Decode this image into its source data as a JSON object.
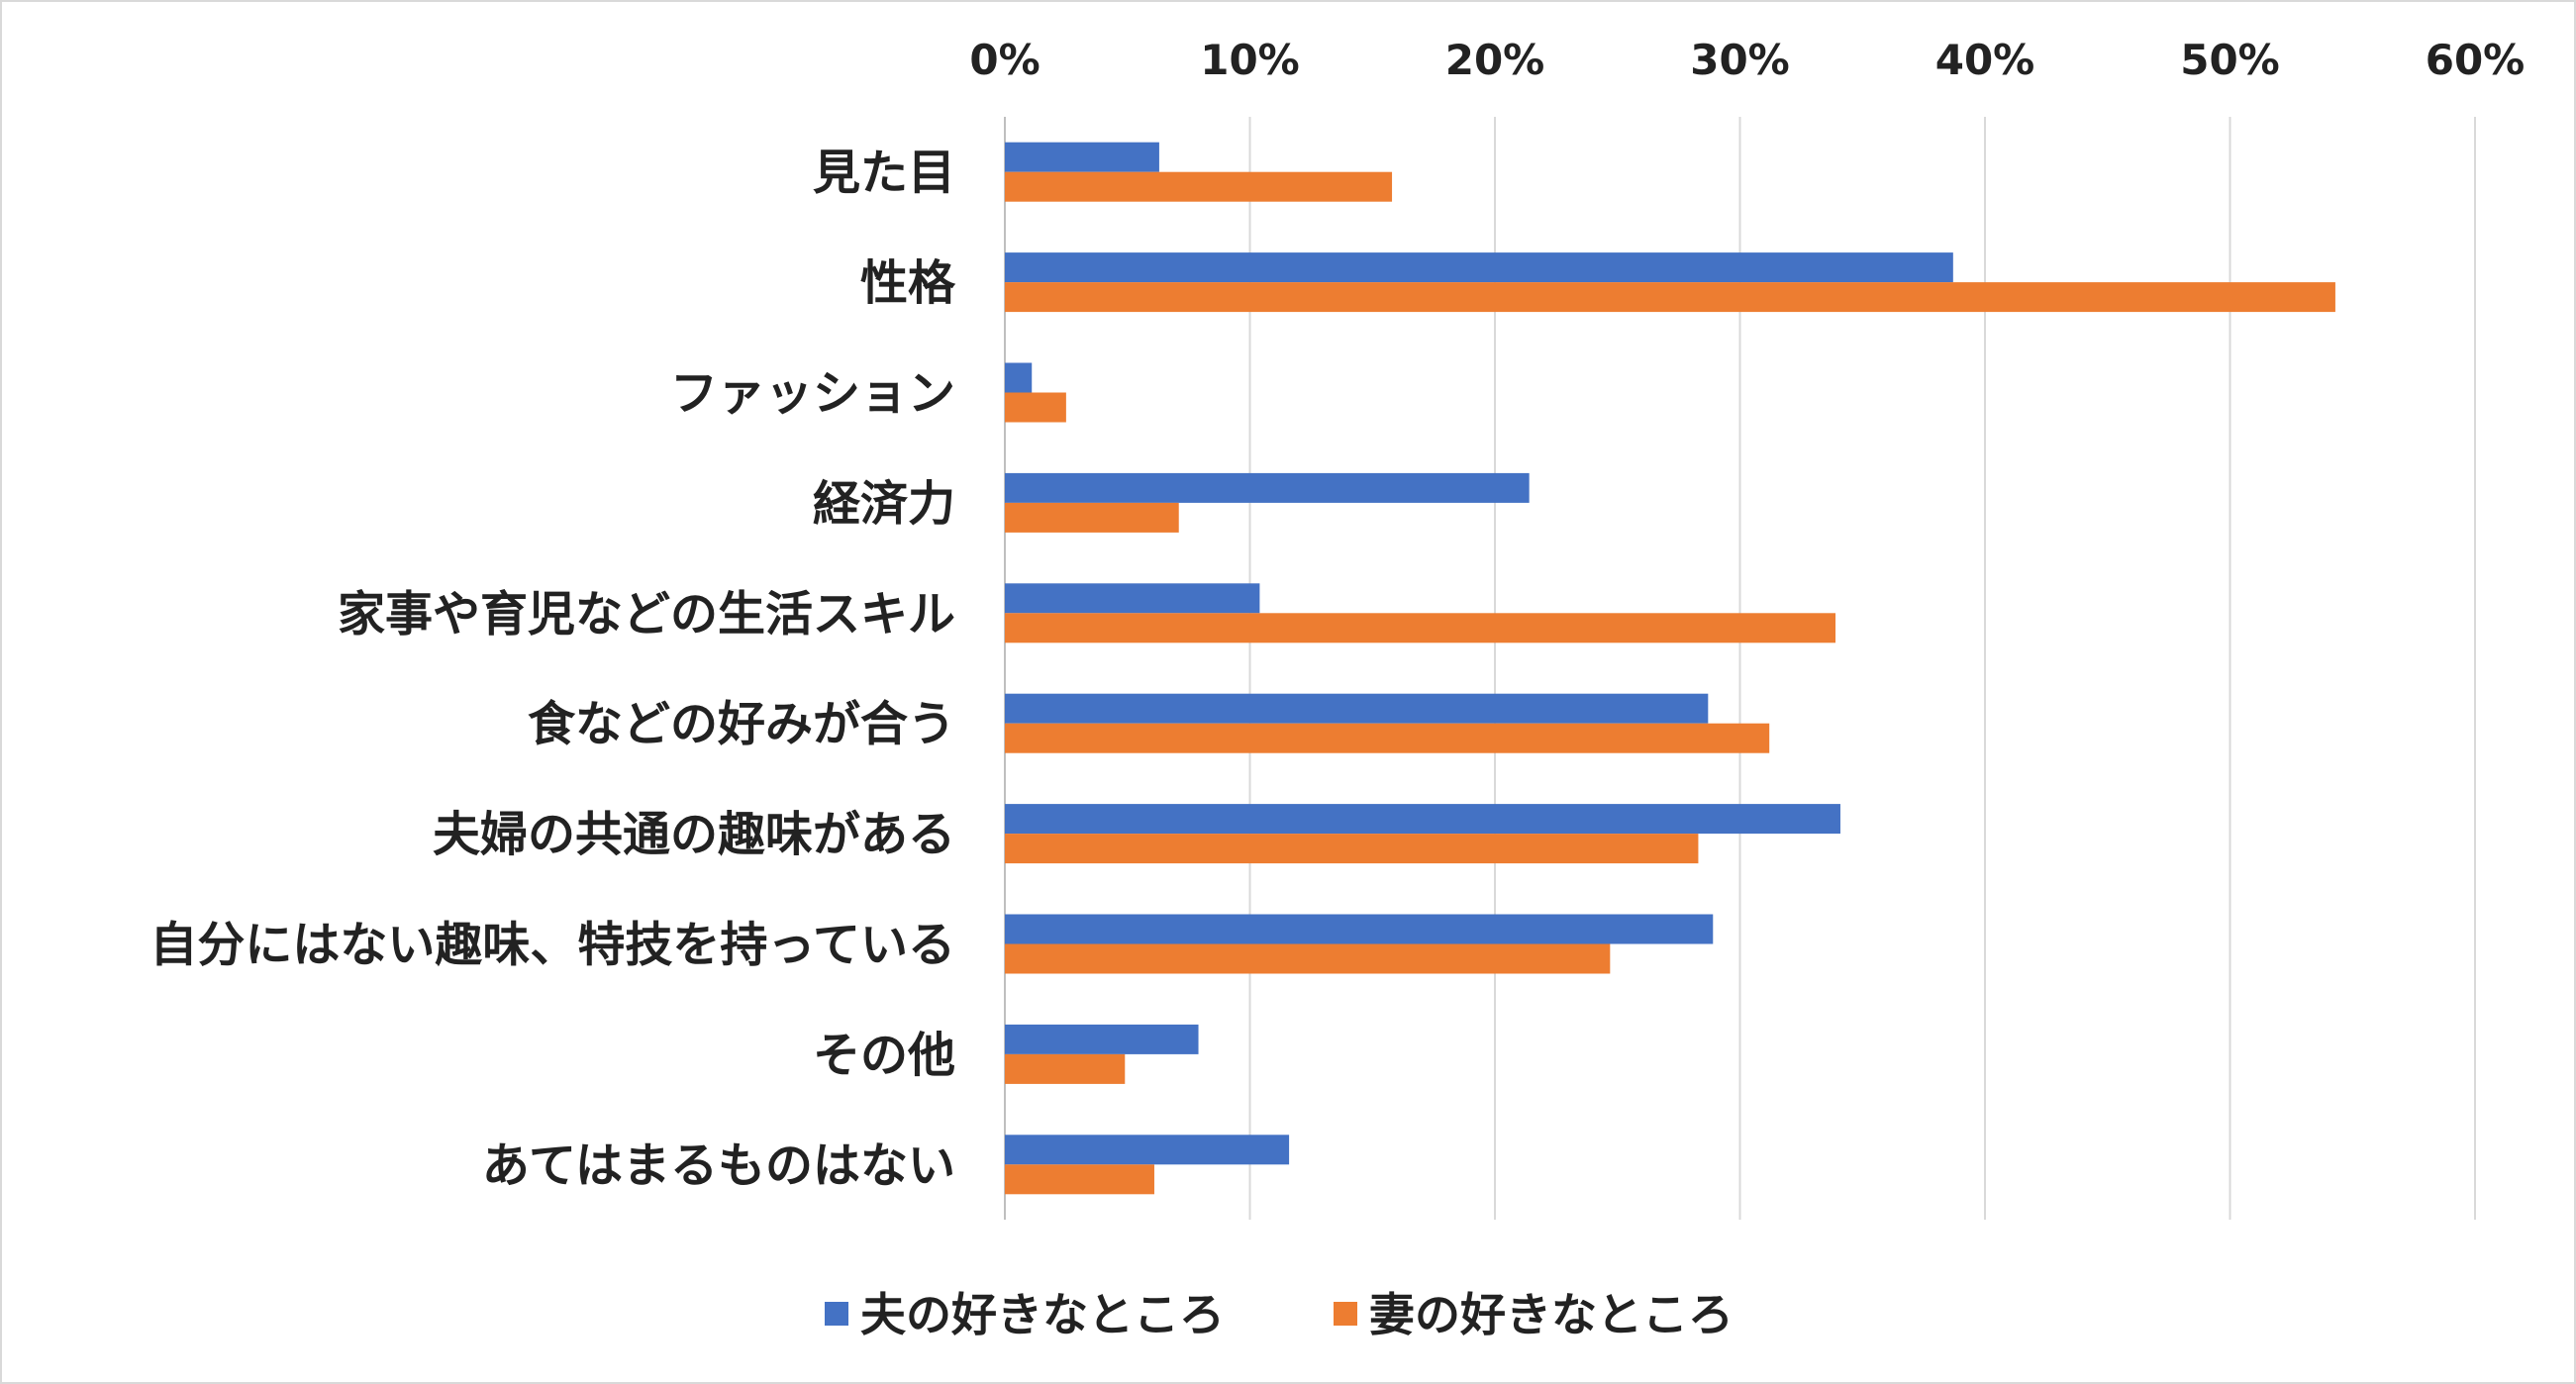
{
  "chart_data": {
    "type": "bar",
    "orientation": "horizontal",
    "categories": [
      "見た目",
      "性格",
      "ファッション",
      "経済力",
      "家事や育児などの生活スキル",
      "食などの好みが合う",
      "夫婦の共通の趣味がある",
      "自分にはない趣味、特技を持っている",
      "その他",
      "あてはまるものはない"
    ],
    "series": [
      {
        "name": "夫の好きなところ",
        "color": "#4472c4",
        "values": [
          6.3,
          38.7,
          1.1,
          21.4,
          10.4,
          28.7,
          34.1,
          28.9,
          7.9,
          11.6
        ]
      },
      {
        "name": "妻の好きなところ",
        "color": "#ed7d31",
        "values": [
          15.8,
          54.3,
          2.5,
          7.1,
          33.9,
          31.2,
          28.3,
          24.7,
          4.9,
          6.1
        ]
      }
    ],
    "x_axis": {
      "position": "top",
      "min": 0,
      "max": 60,
      "step": 10,
      "tick_labels": [
        "0%",
        "10%",
        "20%",
        "30%",
        "40%",
        "50%",
        "60%"
      ]
    },
    "gridlines": true,
    "legend": {
      "position": "bottom"
    },
    "title": "",
    "xlabel": "",
    "ylabel": ""
  }
}
